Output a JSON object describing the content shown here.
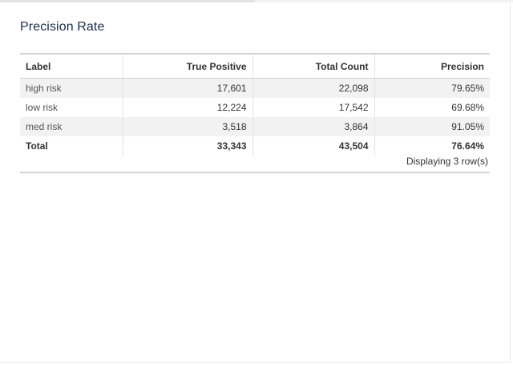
{
  "panel": {
    "title": "Precision Rate"
  },
  "table": {
    "columns": [
      "Label",
      "True Positive",
      "Total Count",
      "Precision"
    ],
    "rows": [
      {
        "label": "high risk",
        "true_positive": "17,601",
        "total_count": "22,098",
        "precision": "79.65%"
      },
      {
        "label": "low risk",
        "true_positive": "12,224",
        "total_count": "17,542",
        "precision": "69.68%"
      },
      {
        "label": "med risk",
        "true_positive": "3,518",
        "total_count": "3,864",
        "precision": "91.05%"
      }
    ],
    "total": {
      "label": "Total",
      "true_positive": "33,343",
      "total_count": "43,504",
      "precision": "76.64%"
    },
    "footer": "Displaying 3 row(s)"
  }
}
